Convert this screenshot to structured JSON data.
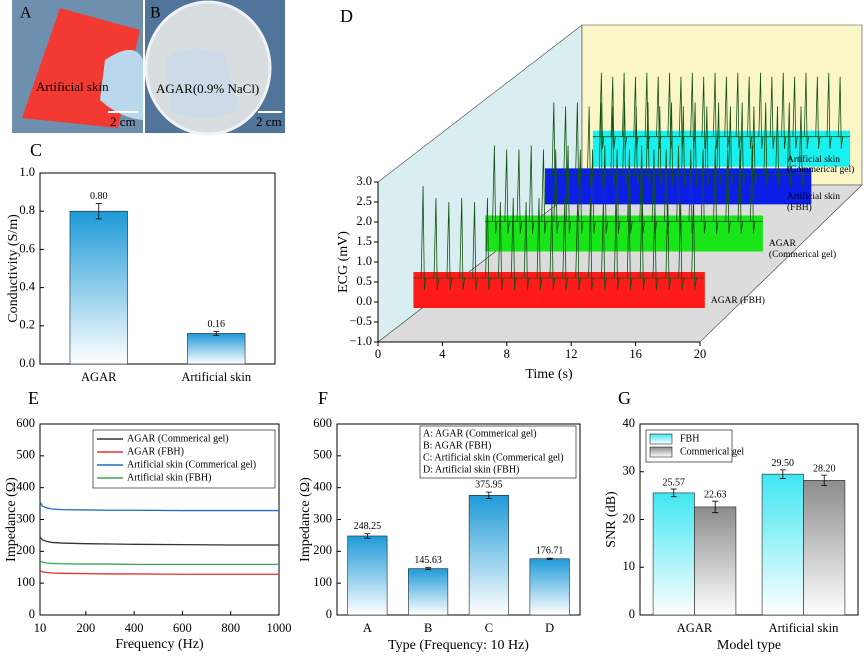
{
  "photos": [
    {
      "panel": "A",
      "caption": "Artificial skin",
      "scale": "2 cm"
    },
    {
      "panel": "B",
      "caption": "AGAR(0.9% NaCl)",
      "scale": "2 cm"
    }
  ],
  "chart_data": [
    {
      "type": "bar",
      "panel": "C",
      "ylabel": "Conductivity (S/m)",
      "categories": [
        "AGAR",
        "Artificial skin"
      ],
      "values": [
        0.8,
        0.16
      ],
      "value_labels": [
        "0.80",
        "0.16"
      ],
      "errors": [
        0.04,
        0.01
      ],
      "color": "#1e9ad8",
      "ylim": [
        0,
        1.0
      ],
      "yticks": [
        {
          "value": 0,
          "label": "0.0"
        },
        0.2,
        0.4,
        0.6,
        0.8,
        {
          "value": 1,
          "label": "1.0"
        }
      ]
    },
    {
      "type": "ecg3d",
      "panel": "D",
      "xlabel": "Time (s)",
      "ylabel": "ECG (mV)",
      "xlim": [
        0,
        20
      ],
      "xticks": [
        0,
        4,
        8,
        12,
        16,
        20
      ],
      "ylim": [
        -1,
        3
      ],
      "yticks": [
        {
          "value": -1,
          "label": "−1.0"
        },
        {
          "value": -0.5,
          "label": "−0.5"
        },
        {
          "value": 0,
          "label": "0.0"
        },
        0.5,
        {
          "value": 1,
          "label": "1.0"
        },
        1.5,
        {
          "value": 2,
          "label": "2.0"
        },
        2.5,
        {
          "value": 3,
          "label": "3.0"
        }
      ],
      "x": [
        2.8,
        3.6,
        4.4,
        5.2,
        6.0,
        6.8,
        7.6,
        8.4,
        9.2,
        10.0,
        10.8,
        11.6,
        12.4,
        13.2,
        14.0,
        14.8,
        15.6,
        16.4,
        17.2,
        18.0,
        18.8,
        19.6
      ],
      "series": [
        {
          "name": "AGAR (FBH)",
          "color": "#ff1a1a",
          "values": [
            2.9,
            2.6,
            2.5,
            2.6,
            2.5,
            2.6,
            2.5,
            2.6,
            2.5,
            2.6,
            2.5,
            2.6,
            2.5,
            2.6,
            2.5,
            2.6,
            2.5,
            2.6,
            2.5,
            2.6,
            2.5,
            2.6
          ]
        },
        {
          "name": "AGAR (Commerical gel)",
          "color": "#19e619",
          "values": [
            2.5,
            2.4,
            2.4,
            2.5,
            2.4,
            2.4,
            2.5,
            2.4,
            2.4,
            2.5,
            2.4,
            2.4,
            2.5,
            2.4,
            2.4,
            2.5,
            2.4,
            2.4,
            2.5,
            2.4,
            2.4,
            2.5
          ]
        },
        {
          "name": "Artificial skin (FBH)",
          "color": "#0a1ee6",
          "values": [
            2.4,
            2.3,
            2.4,
            2.3,
            2.4,
            2.3,
            2.4,
            2.3,
            2.4,
            2.3,
            2.4,
            2.3,
            2.4,
            2.3,
            2.4,
            2.3,
            2.4,
            2.3,
            2.4,
            2.3,
            2.4,
            2.3
          ]
        },
        {
          "name": "Artificial skin (Commerical gel)",
          "color": "#19f0f0",
          "values": [
            2.2,
            2.1,
            2.2,
            2.1,
            2.2,
            2.1,
            2.2,
            2.1,
            2.2,
            2.1,
            2.2,
            2.1,
            2.2,
            2.1,
            2.2,
            2.1,
            2.2,
            2.1,
            2.2,
            2.1,
            2.2,
            2.1
          ]
        }
      ]
    },
    {
      "type": "line",
      "panel": "E",
      "xlabel": "Frequency (Hz)",
      "ylabel": "Impedance (Ω)",
      "xlim": [
        10,
        1000
      ],
      "xticks": [
        10,
        200,
        400,
        600,
        800,
        1000
      ],
      "ylim": [
        0,
        600
      ],
      "yticks": [
        0,
        100,
        200,
        300,
        400,
        500,
        600
      ],
      "legend": "upper right",
      "x": [
        10,
        20,
        40,
        60,
        100,
        200,
        300,
        400,
        600,
        800,
        1000
      ],
      "series": [
        {
          "name": "AGAR (Commerical gel)",
          "color": "#333333",
          "values": [
            245,
            236,
            231,
            228,
            226,
            224,
            223,
            222,
            221,
            220,
            220
          ]
        },
        {
          "name": "AGAR (FBH)",
          "color": "#e8312f",
          "values": [
            140,
            136,
            133,
            132,
            131,
            130,
            129,
            129,
            128,
            128,
            128
          ]
        },
        {
          "name": "Artificial skin (Commerical gel)",
          "color": "#1f6fc0",
          "values": [
            355,
            342,
            336,
            333,
            331,
            330,
            329,
            329,
            328,
            328,
            328
          ]
        },
        {
          "name": "Artificial skin (FBH)",
          "color": "#3aa857",
          "values": [
            170,
            166,
            163,
            162,
            161,
            160,
            160,
            159,
            159,
            159,
            159
          ]
        }
      ]
    },
    {
      "type": "bar",
      "panel": "F",
      "xlabel": "Type (Frequency: 10 Hz)",
      "ylabel": "Impedance (Ω)",
      "categories": [
        "A",
        "B",
        "C",
        "D"
      ],
      "values": [
        248.25,
        145.63,
        375.95,
        176.71
      ],
      "errors": [
        7,
        3,
        10,
        2
      ],
      "color": "#1e9ad8",
      "ylim": [
        0,
        600
      ],
      "yticks": [
        0,
        100,
        200,
        300,
        400,
        500,
        600
      ],
      "notes": [
        "A: AGAR (Commerical gel)",
        "B: AGAR (FBH)",
        "C: Artificial skin (Commerical gel)",
        "D: Artificial skin (FBH)"
      ]
    },
    {
      "type": "grouped_bar",
      "panel": "G",
      "xlabel": "Model type",
      "ylabel": "SNR (dB)",
      "categories": [
        "AGAR",
        "Artificial skin"
      ],
      "ylim": [
        0,
        40
      ],
      "yticks": [
        0,
        10,
        20,
        30,
        40
      ],
      "legend": "upper left",
      "series": [
        {
          "name": "FBH",
          "color": "#3fe6f2",
          "values": [
            25.57,
            29.5
          ],
          "value_labels": [
            "25.57",
            "29.50"
          ],
          "errors": [
            0.8,
            0.9
          ]
        },
        {
          "name": "Commerical gel",
          "color": "#8c8c8c",
          "values": [
            22.63,
            28.2
          ],
          "value_labels": [
            "22.63",
            "28.20"
          ],
          "errors": [
            1.2,
            1.1
          ]
        }
      ]
    }
  ]
}
